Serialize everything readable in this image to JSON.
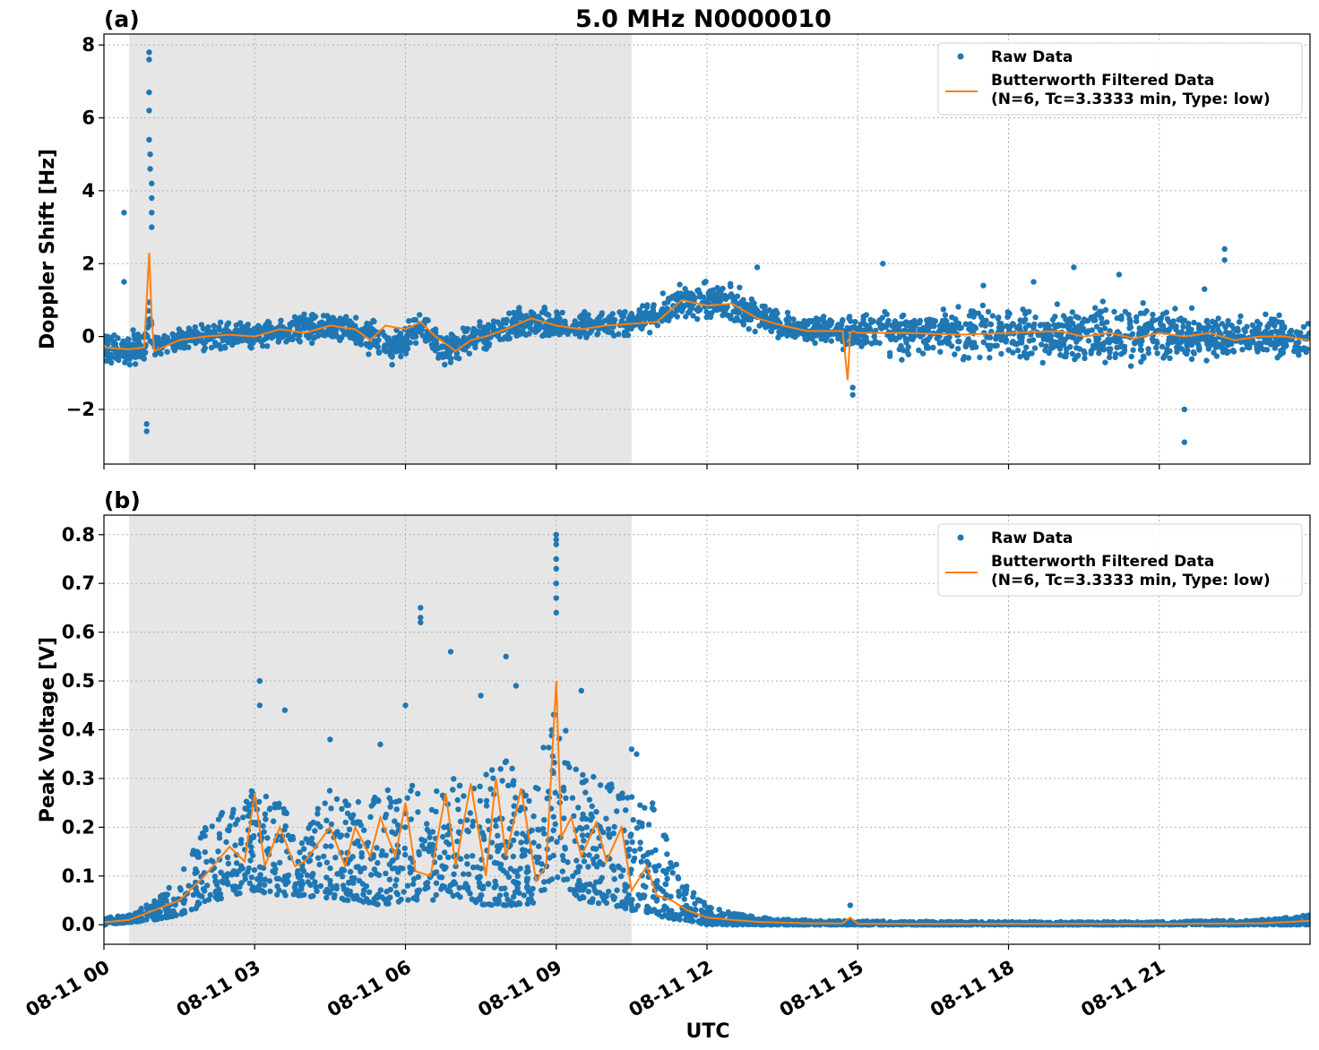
{
  "figure": {
    "title": "5.0 MHz N0000010",
    "xlabel": "UTC"
  },
  "chart_data": [
    {
      "type": "scatter",
      "panel_label": "(a)",
      "title": "5.0 MHz N0000010",
      "xlabel": "",
      "ylabel": "Doppler Shift [Hz]",
      "xlim": [
        0,
        24
      ],
      "ylim": [
        -3.5,
        8.3
      ],
      "x_unit": "hours since 08-11 00:00 UTC",
      "yticks": [
        8,
        6,
        4,
        2,
        0,
        -2
      ],
      "ytick_labels": [
        "8",
        "6",
        "4",
        "2",
        "0",
        "−2"
      ],
      "shaded_region": [
        0.5,
        10.5
      ],
      "grid": true,
      "legend_position": "upper-right",
      "legend": [
        "Raw Data",
        "Butterworth Filtered Data",
        "(N=6, Tc=3.3333 min, Type: low)"
      ],
      "colors": {
        "raw": "#1f77b4",
        "filtered": "#ff7f0e",
        "shade": "#e6e6e6"
      },
      "series": [
        {
          "name": "Raw Data",
          "kind": "band",
          "x": [
            0,
            0.8,
            0.9,
            1.0,
            1.5,
            2.5,
            3.5,
            4.0,
            4.5,
            5.3,
            5.8,
            6.3,
            6.8,
            7.2,
            8.0,
            8.5,
            9.0,
            10.0,
            10.5,
            11.0,
            11.5,
            12.0,
            12.5,
            13.0,
            13.5,
            14.0,
            14.9,
            15.5,
            16.0,
            17.0,
            18.0,
            19.0,
            20.0,
            21.0,
            22.0,
            23.0,
            24.0
          ],
          "center": [
            -0.3,
            -0.35,
            0.5,
            -0.3,
            -0.1,
            0.05,
            0.1,
            0.2,
            0.3,
            0.0,
            -0.3,
            0.2,
            -0.4,
            -0.1,
            0.2,
            0.4,
            0.3,
            0.3,
            0.4,
            0.6,
            0.95,
            0.9,
            0.9,
            0.6,
            0.3,
            0.2,
            0.1,
            0.1,
            0.1,
            0.1,
            0.1,
            0.1,
            0.1,
            0.1,
            0.0,
            0.0,
            -0.1
          ],
          "spread": [
            0.4,
            0.4,
            0.6,
            0.35,
            0.3,
            0.3,
            0.3,
            0.35,
            0.35,
            0.4,
            0.4,
            0.35,
            0.35,
            0.35,
            0.35,
            0.35,
            0.35,
            0.3,
            0.3,
            0.35,
            0.4,
            0.45,
            0.4,
            0.35,
            0.3,
            0.3,
            0.35,
            0.5,
            0.55,
            0.6,
            0.6,
            0.65,
            0.7,
            0.6,
            0.55,
            0.5,
            0.45
          ]
        },
        {
          "name": "Raw Data",
          "kind": "outliers",
          "x": [
            0.4,
            0.4,
            0.9,
            0.9,
            0.9,
            0.9,
            0.9,
            0.92,
            0.92,
            0.95,
            0.95,
            0.95,
            0.95,
            0.85,
            0.85,
            13.0,
            14.9,
            15.5,
            17.5,
            18.5,
            19.3,
            20.2,
            21.5,
            21.5,
            21.9,
            22.3,
            22.3,
            14.9
          ],
          "y": [
            3.4,
            1.5,
            7.8,
            7.6,
            6.7,
            6.2,
            5.4,
            5.0,
            4.6,
            4.2,
            3.8,
            3.4,
            3.0,
            -2.4,
            -2.6,
            1.9,
            -1.4,
            2.0,
            1.4,
            1.5,
            1.9,
            1.7,
            -2.0,
            -2.9,
            1.3,
            2.4,
            2.1,
            -1.6
          ]
        },
        {
          "name": "Butterworth Filtered Data",
          "kind": "line",
          "x": [
            0,
            0.5,
            0.8,
            0.9,
            0.95,
            1.0,
            1.5,
            2.0,
            2.5,
            3.0,
            3.5,
            4.0,
            4.5,
            5.0,
            5.3,
            5.6,
            6.0,
            6.3,
            6.6,
            7.0,
            7.3,
            7.6,
            8.0,
            8.5,
            9.0,
            9.5,
            10.0,
            10.5,
            11.0,
            11.5,
            12.0,
            12.5,
            13.0,
            13.5,
            14.0,
            14.7,
            14.8,
            14.85,
            14.9,
            15.0,
            16.0,
            17.0,
            18.0,
            19.0,
            19.5,
            20.0,
            20.5,
            21.0,
            21.5,
            22.0,
            22.5,
            23.0,
            23.5,
            24.0
          ],
          "y": [
            -0.3,
            -0.35,
            -0.3,
            2.3,
            0.5,
            -0.4,
            -0.1,
            0.0,
            0.05,
            0.0,
            0.2,
            0.1,
            0.3,
            0.2,
            -0.1,
            0.3,
            0.2,
            0.4,
            0.0,
            -0.4,
            -0.1,
            0.0,
            0.2,
            0.5,
            0.3,
            0.2,
            0.3,
            0.35,
            0.4,
            1.0,
            0.85,
            0.9,
            0.5,
            0.3,
            0.15,
            0.15,
            -1.2,
            0.1,
            0.15,
            0.1,
            0.1,
            0.05,
            0.1,
            0.15,
            0.0,
            0.1,
            -0.05,
            0.1,
            0.0,
            0.1,
            -0.1,
            0.0,
            0.0,
            -0.1
          ]
        }
      ]
    },
    {
      "type": "scatter",
      "panel_label": "(b)",
      "xlabel": "UTC",
      "ylabel": "Peak Voltage [V]",
      "xlim": [
        0,
        24
      ],
      "ylim": [
        -0.04,
        0.84
      ],
      "x_unit": "hours since 08-11 00:00 UTC",
      "yticks": [
        0.8,
        0.7,
        0.6,
        0.5,
        0.4,
        0.3,
        0.2,
        0.1,
        0.0
      ],
      "ytick_labels": [
        "0.8",
        "0.7",
        "0.6",
        "0.5",
        "0.4",
        "0.3",
        "0.2",
        "0.1",
        "0.0"
      ],
      "xticks": [
        0,
        3,
        6,
        9,
        12,
        15,
        18,
        21
      ],
      "xtick_labels": [
        "08-11 00",
        "08-11 03",
        "08-11 06",
        "08-11 09",
        "08-11 12",
        "08-11 15",
        "08-11 18",
        "08-11 21"
      ],
      "shaded_region": [
        0.5,
        10.5
      ],
      "grid": true,
      "legend_position": "upper-right",
      "legend": [
        "Raw Data",
        "Butterworth Filtered Data",
        "(N=6, Tc=3.3333 min, Type: low)"
      ],
      "colors": {
        "raw": "#1f77b4",
        "filtered": "#ff7f0e",
        "shade": "#e6e6e6"
      },
      "series": [
        {
          "name": "Raw Data",
          "kind": "band",
          "x": [
            0,
            0.5,
            1.0,
            1.5,
            2.0,
            2.5,
            3.0,
            3.5,
            4.0,
            4.5,
            5.0,
            5.5,
            6.0,
            6.5,
            7.0,
            7.5,
            8.0,
            8.5,
            9.0,
            9.5,
            10.0,
            10.5,
            11.0,
            11.3,
            11.6,
            12.0,
            12.5,
            13.0,
            14.0,
            15.0,
            18.0,
            21.0,
            23.0,
            24.0
          ],
          "low": [
            0.0,
            0.005,
            0.01,
            0.02,
            0.04,
            0.06,
            0.07,
            0.06,
            0.06,
            0.05,
            0.05,
            0.04,
            0.05,
            0.05,
            0.06,
            0.04,
            0.04,
            0.04,
            0.1,
            0.05,
            0.04,
            0.03,
            0.02,
            0.01,
            0.01,
            0.0,
            0.0,
            0.0,
            0.0,
            0.0,
            0.0,
            0.0,
            0.0,
            0.0
          ],
          "high": [
            0.015,
            0.02,
            0.05,
            0.1,
            0.2,
            0.25,
            0.28,
            0.25,
            0.2,
            0.28,
            0.25,
            0.27,
            0.3,
            0.26,
            0.34,
            0.3,
            0.34,
            0.28,
            0.45,
            0.32,
            0.3,
            0.28,
            0.25,
            0.15,
            0.08,
            0.04,
            0.025,
            0.015,
            0.01,
            0.008,
            0.006,
            0.006,
            0.01,
            0.02
          ]
        },
        {
          "name": "Raw Data",
          "kind": "outliers",
          "x": [
            3.1,
            3.1,
            3.6,
            4.5,
            5.5,
            6.0,
            6.3,
            6.3,
            6.3,
            6.9,
            7.5,
            8.0,
            9.0,
            9.0,
            9.0,
            9.0,
            9.0,
            9.0,
            9.0,
            9.0,
            10.5,
            10.6,
            8.2,
            9.5,
            14.85
          ],
          "y": [
            0.5,
            0.45,
            0.44,
            0.38,
            0.37,
            0.45,
            0.65,
            0.63,
            0.62,
            0.56,
            0.47,
            0.55,
            0.8,
            0.79,
            0.78,
            0.75,
            0.73,
            0.7,
            0.67,
            0.64,
            0.36,
            0.35,
            0.49,
            0.48,
            0.04
          ]
        },
        {
          "name": "Butterworth Filtered Data",
          "kind": "line",
          "x": [
            0,
            0.5,
            1.0,
            1.5,
            2.0,
            2.5,
            2.8,
            3.0,
            3.2,
            3.5,
            3.8,
            4.0,
            4.5,
            4.8,
            5.0,
            5.3,
            5.5,
            5.8,
            6.0,
            6.2,
            6.5,
            6.8,
            7.0,
            7.3,
            7.6,
            7.8,
            8.0,
            8.3,
            8.6,
            8.8,
            9.0,
            9.1,
            9.3,
            9.5,
            9.8,
            10.0,
            10.3,
            10.5,
            10.8,
            11.0,
            11.3,
            11.6,
            12.0,
            12.5,
            13.0,
            14.0,
            14.7,
            14.85,
            15.0,
            18.0,
            21.0,
            23.0,
            24.0
          ],
          "y": [
            0.005,
            0.01,
            0.03,
            0.05,
            0.1,
            0.16,
            0.13,
            0.27,
            0.12,
            0.2,
            0.12,
            0.13,
            0.2,
            0.12,
            0.2,
            0.14,
            0.22,
            0.14,
            0.25,
            0.11,
            0.1,
            0.27,
            0.12,
            0.29,
            0.1,
            0.3,
            0.14,
            0.28,
            0.09,
            0.12,
            0.5,
            0.18,
            0.22,
            0.14,
            0.21,
            0.13,
            0.2,
            0.07,
            0.12,
            0.06,
            0.05,
            0.03,
            0.015,
            0.01,
            0.006,
            0.003,
            0.003,
            0.015,
            0.002,
            0.002,
            0.002,
            0.003,
            0.008
          ]
        }
      ]
    }
  ]
}
